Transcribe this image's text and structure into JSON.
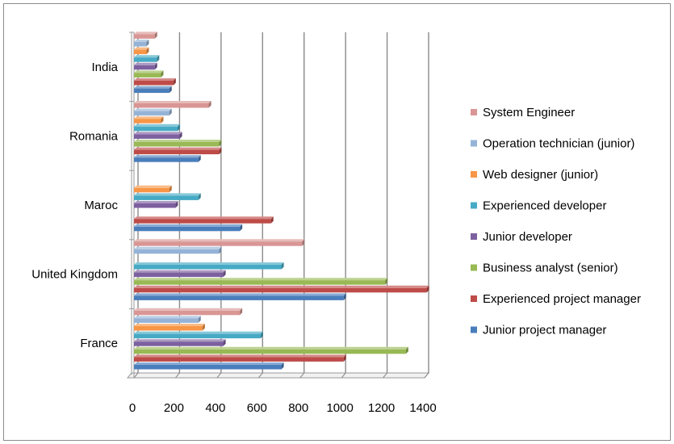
{
  "chart_data": {
    "type": "bar",
    "orientation": "horizontal",
    "bar_style": "3d-clustered",
    "categories": [
      "France",
      "United Kingdom",
      "Maroc",
      "Romania",
      "India"
    ],
    "series": [
      {
        "name": "Junior project manager",
        "color": "#4a7ebb",
        "values": [
          710,
          1010,
          510,
          310,
          170
        ]
      },
      {
        "name": "Experienced project manager",
        "color": "#be4b48",
        "values": [
          1010,
          1410,
          660,
          410,
          190
        ]
      },
      {
        "name": "Business analyst (senior)",
        "color": "#98b954",
        "values": [
          1310,
          1210,
          0,
          410,
          130
        ]
      },
      {
        "name": "Junior developer",
        "color": "#7d60a0",
        "values": [
          430,
          430,
          200,
          220,
          100
        ]
      },
      {
        "name": "Experienced developer",
        "color": "#46aac5",
        "values": [
          610,
          710,
          310,
          210,
          110
        ]
      },
      {
        "name": "Web designer (junior)",
        "color": "#f79646",
        "values": [
          330,
          0,
          170,
          130,
          60
        ]
      },
      {
        "name": "Operation technician (junior)",
        "color": "#95b3d7",
        "values": [
          310,
          410,
          0,
          170,
          60
        ]
      },
      {
        "name": "System Engineer",
        "color": "#d99694",
        "values": [
          510,
          810,
          0,
          360,
          100
        ]
      }
    ],
    "x_ticks": [
      "0",
      "200",
      "400",
      "600",
      "800",
      "1000",
      "1200",
      "1400"
    ],
    "xlim": [
      0,
      1400
    ],
    "grid": "vertical major gridlines",
    "legend_position": "right",
    "title": "",
    "xlabel": "",
    "ylabel": ""
  }
}
